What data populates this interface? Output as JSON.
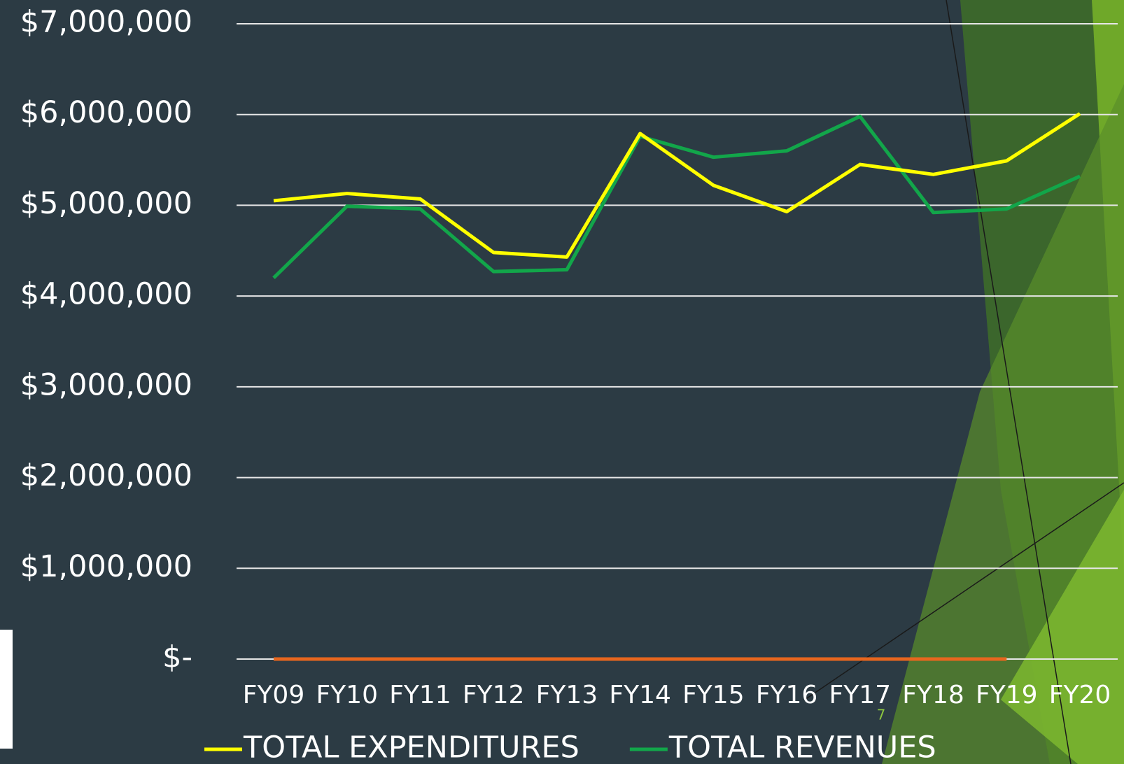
{
  "chart_data": {
    "type": "line",
    "categories": [
      "FY09",
      "FY10",
      "FY11",
      "FY12",
      "FY13",
      "FY14",
      "FY15",
      "FY16",
      "FY17",
      "FY18",
      "FY19",
      "FY20"
    ],
    "series": [
      {
        "name": "TOTAL EXPENDITURES",
        "color": "#ffff00",
        "values": [
          5050000,
          5130000,
          5070000,
          4480000,
          4430000,
          5790000,
          5220000,
          4930000,
          5450000,
          5340000,
          5490000,
          6010000
        ]
      },
      {
        "name": "TOTAL REVENUES",
        "color": "#12a64a",
        "values": [
          4200000,
          4990000,
          4960000,
          4270000,
          4290000,
          5760000,
          5530000,
          5600000,
          5980000,
          4920000,
          4960000,
          5320000
        ]
      },
      {
        "color": "#e8661e",
        "values": [
          0,
          0,
          0,
          0,
          0,
          0,
          0,
          0,
          0,
          0,
          0,
          null
        ]
      }
    ],
    "ylim": [
      0,
      7000000
    ],
    "yticks": [
      {
        "value": 0,
        "label": "$-"
      },
      {
        "value": 1000000,
        "label": "$1,000,000"
      },
      {
        "value": 2000000,
        "label": "$2,000,000"
      },
      {
        "value": 3000000,
        "label": "$3,000,000"
      },
      {
        "value": 4000000,
        "label": "$4,000,000"
      },
      {
        "value": 5000000,
        "label": "$5,000,000"
      },
      {
        "value": 6000000,
        "label": "$6,000,000"
      },
      {
        "value": 7000000,
        "label": "$7,000,000"
      }
    ],
    "grid": true,
    "legend": "bottom",
    "page_number": "7"
  }
}
